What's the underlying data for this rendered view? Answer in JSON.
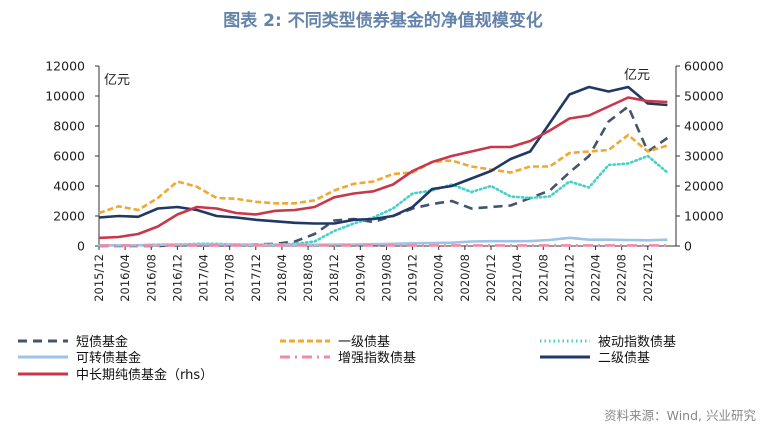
{
  "chart_data": {
    "type": "line",
    "title": "图表 2:  不同类型债券基金的净值规模变化",
    "left_unit": "亿元",
    "right_unit": "亿元",
    "ylim_left": [
      0,
      12000
    ],
    "ylim_right": [
      0,
      60000
    ],
    "left_ticks": [
      "0",
      "2000",
      "4000",
      "6000",
      "8000",
      "10000",
      "12000"
    ],
    "right_ticks": [
      "0",
      "10000",
      "20000",
      "30000",
      "40000",
      "50000",
      "60000"
    ],
    "x_tick_labels": [
      "2015/12",
      "2016/04",
      "2016/08",
      "2016/12",
      "2017/04",
      "2017/08",
      "2017/12",
      "2018/04",
      "2018/08",
      "2018/12",
      "2019/04",
      "2019/08",
      "2019/12",
      "2020/04",
      "2020/08",
      "2020/12",
      "2021/04",
      "2021/08",
      "2021/12",
      "2022/04",
      "2022/08",
      "2022/12"
    ],
    "x": [
      "2015/12",
      "2016/03",
      "2016/06",
      "2016/09",
      "2016/12",
      "2017/03",
      "2017/06",
      "2017/09",
      "2017/12",
      "2018/03",
      "2018/06",
      "2018/09",
      "2018/12",
      "2019/03",
      "2019/06",
      "2019/09",
      "2019/12",
      "2020/03",
      "2020/06",
      "2020/09",
      "2020/12",
      "2021/03",
      "2021/06",
      "2021/09",
      "2021/12",
      "2022/03",
      "2022/06",
      "2022/09",
      "2022/12",
      "2023/03"
    ],
    "grid": false,
    "legend_position": "bottom",
    "series": [
      {
        "name": "短债基金",
        "axis": "left",
        "color": "#44546a",
        "style": "dash",
        "values": [
          0,
          0,
          0,
          0,
          50,
          50,
          50,
          50,
          100,
          150,
          300,
          800,
          1700,
          1800,
          1600,
          2000,
          2500,
          2800,
          3000,
          2500,
          2600,
          2700,
          3200,
          3700,
          4900,
          6000,
          8300,
          9300,
          6300,
          7200
        ]
      },
      {
        "name": "一级债基",
        "axis": "left",
        "color": "#f0a830",
        "style": "dash-short",
        "values": [
          2200,
          2650,
          2400,
          3200,
          4300,
          3950,
          3200,
          3150,
          2950,
          2850,
          2850,
          3050,
          3700,
          4150,
          4300,
          4800,
          4900,
          5600,
          5700,
          5300,
          5100,
          4900,
          5300,
          5300,
          6200,
          6300,
          6400,
          7400,
          6300,
          6700
        ]
      },
      {
        "name": "被动指数债基",
        "axis": "left",
        "color": "#45d0c8",
        "style": "dot",
        "values": [
          50,
          50,
          50,
          100,
          100,
          150,
          150,
          100,
          100,
          100,
          150,
          300,
          1000,
          1500,
          1900,
          2500,
          3500,
          3700,
          4100,
          3600,
          4000,
          3300,
          3200,
          3300,
          4300,
          3900,
          5400,
          5500,
          6000,
          4900
        ]
      },
      {
        "name": "可转债基金",
        "axis": "left",
        "color": "#9dc3e6",
        "style": "solid",
        "values": [
          50,
          50,
          50,
          80,
          100,
          100,
          100,
          100,
          80,
          80,
          80,
          80,
          100,
          100,
          120,
          150,
          180,
          200,
          220,
          300,
          320,
          320,
          330,
          400,
          550,
          420,
          420,
          400,
          380,
          420
        ]
      },
      {
        "name": "增强指数债基",
        "axis": "left",
        "color": "#f08aa5",
        "style": "dashdot",
        "values": [
          30,
          30,
          30,
          30,
          40,
          40,
          40,
          40,
          40,
          40,
          40,
          40,
          40,
          40,
          40,
          40,
          40,
          40,
          40,
          40,
          40,
          40,
          40,
          40,
          40,
          40,
          40,
          40,
          40,
          40
        ]
      },
      {
        "name": "二级债基",
        "axis": "left",
        "color": "#1f3864",
        "style": "solid",
        "values": [
          1900,
          2000,
          1950,
          2500,
          2600,
          2400,
          2000,
          1900,
          1750,
          1650,
          1550,
          1500,
          1500,
          1750,
          1800,
          2000,
          2600,
          3800,
          4000,
          4500,
          5000,
          5800,
          6300,
          8200,
          10100,
          10600,
          10300,
          10600,
          9500,
          9400
        ]
      },
      {
        "name": "中长期纯债基金（rhs）",
        "axis": "right",
        "color": "#c8374a",
        "style": "solid",
        "values": [
          2700,
          3000,
          4000,
          6500,
          10500,
          13000,
          12500,
          11000,
          10500,
          11750,
          12000,
          13000,
          16250,
          17500,
          18250,
          20500,
          25000,
          28000,
          30000,
          31500,
          33000,
          33000,
          35000,
          38500,
          42500,
          43500,
          46500,
          49500,
          48300,
          48000
        ]
      }
    ]
  },
  "legend": {
    "items": [
      "短债基金",
      "一级债基",
      "被动指数债基",
      "可转债基金",
      "增强指数债基",
      "二级债基",
      "中长期纯债基金（rhs）"
    ]
  },
  "source": "资料来源：Wind, 兴业研究"
}
